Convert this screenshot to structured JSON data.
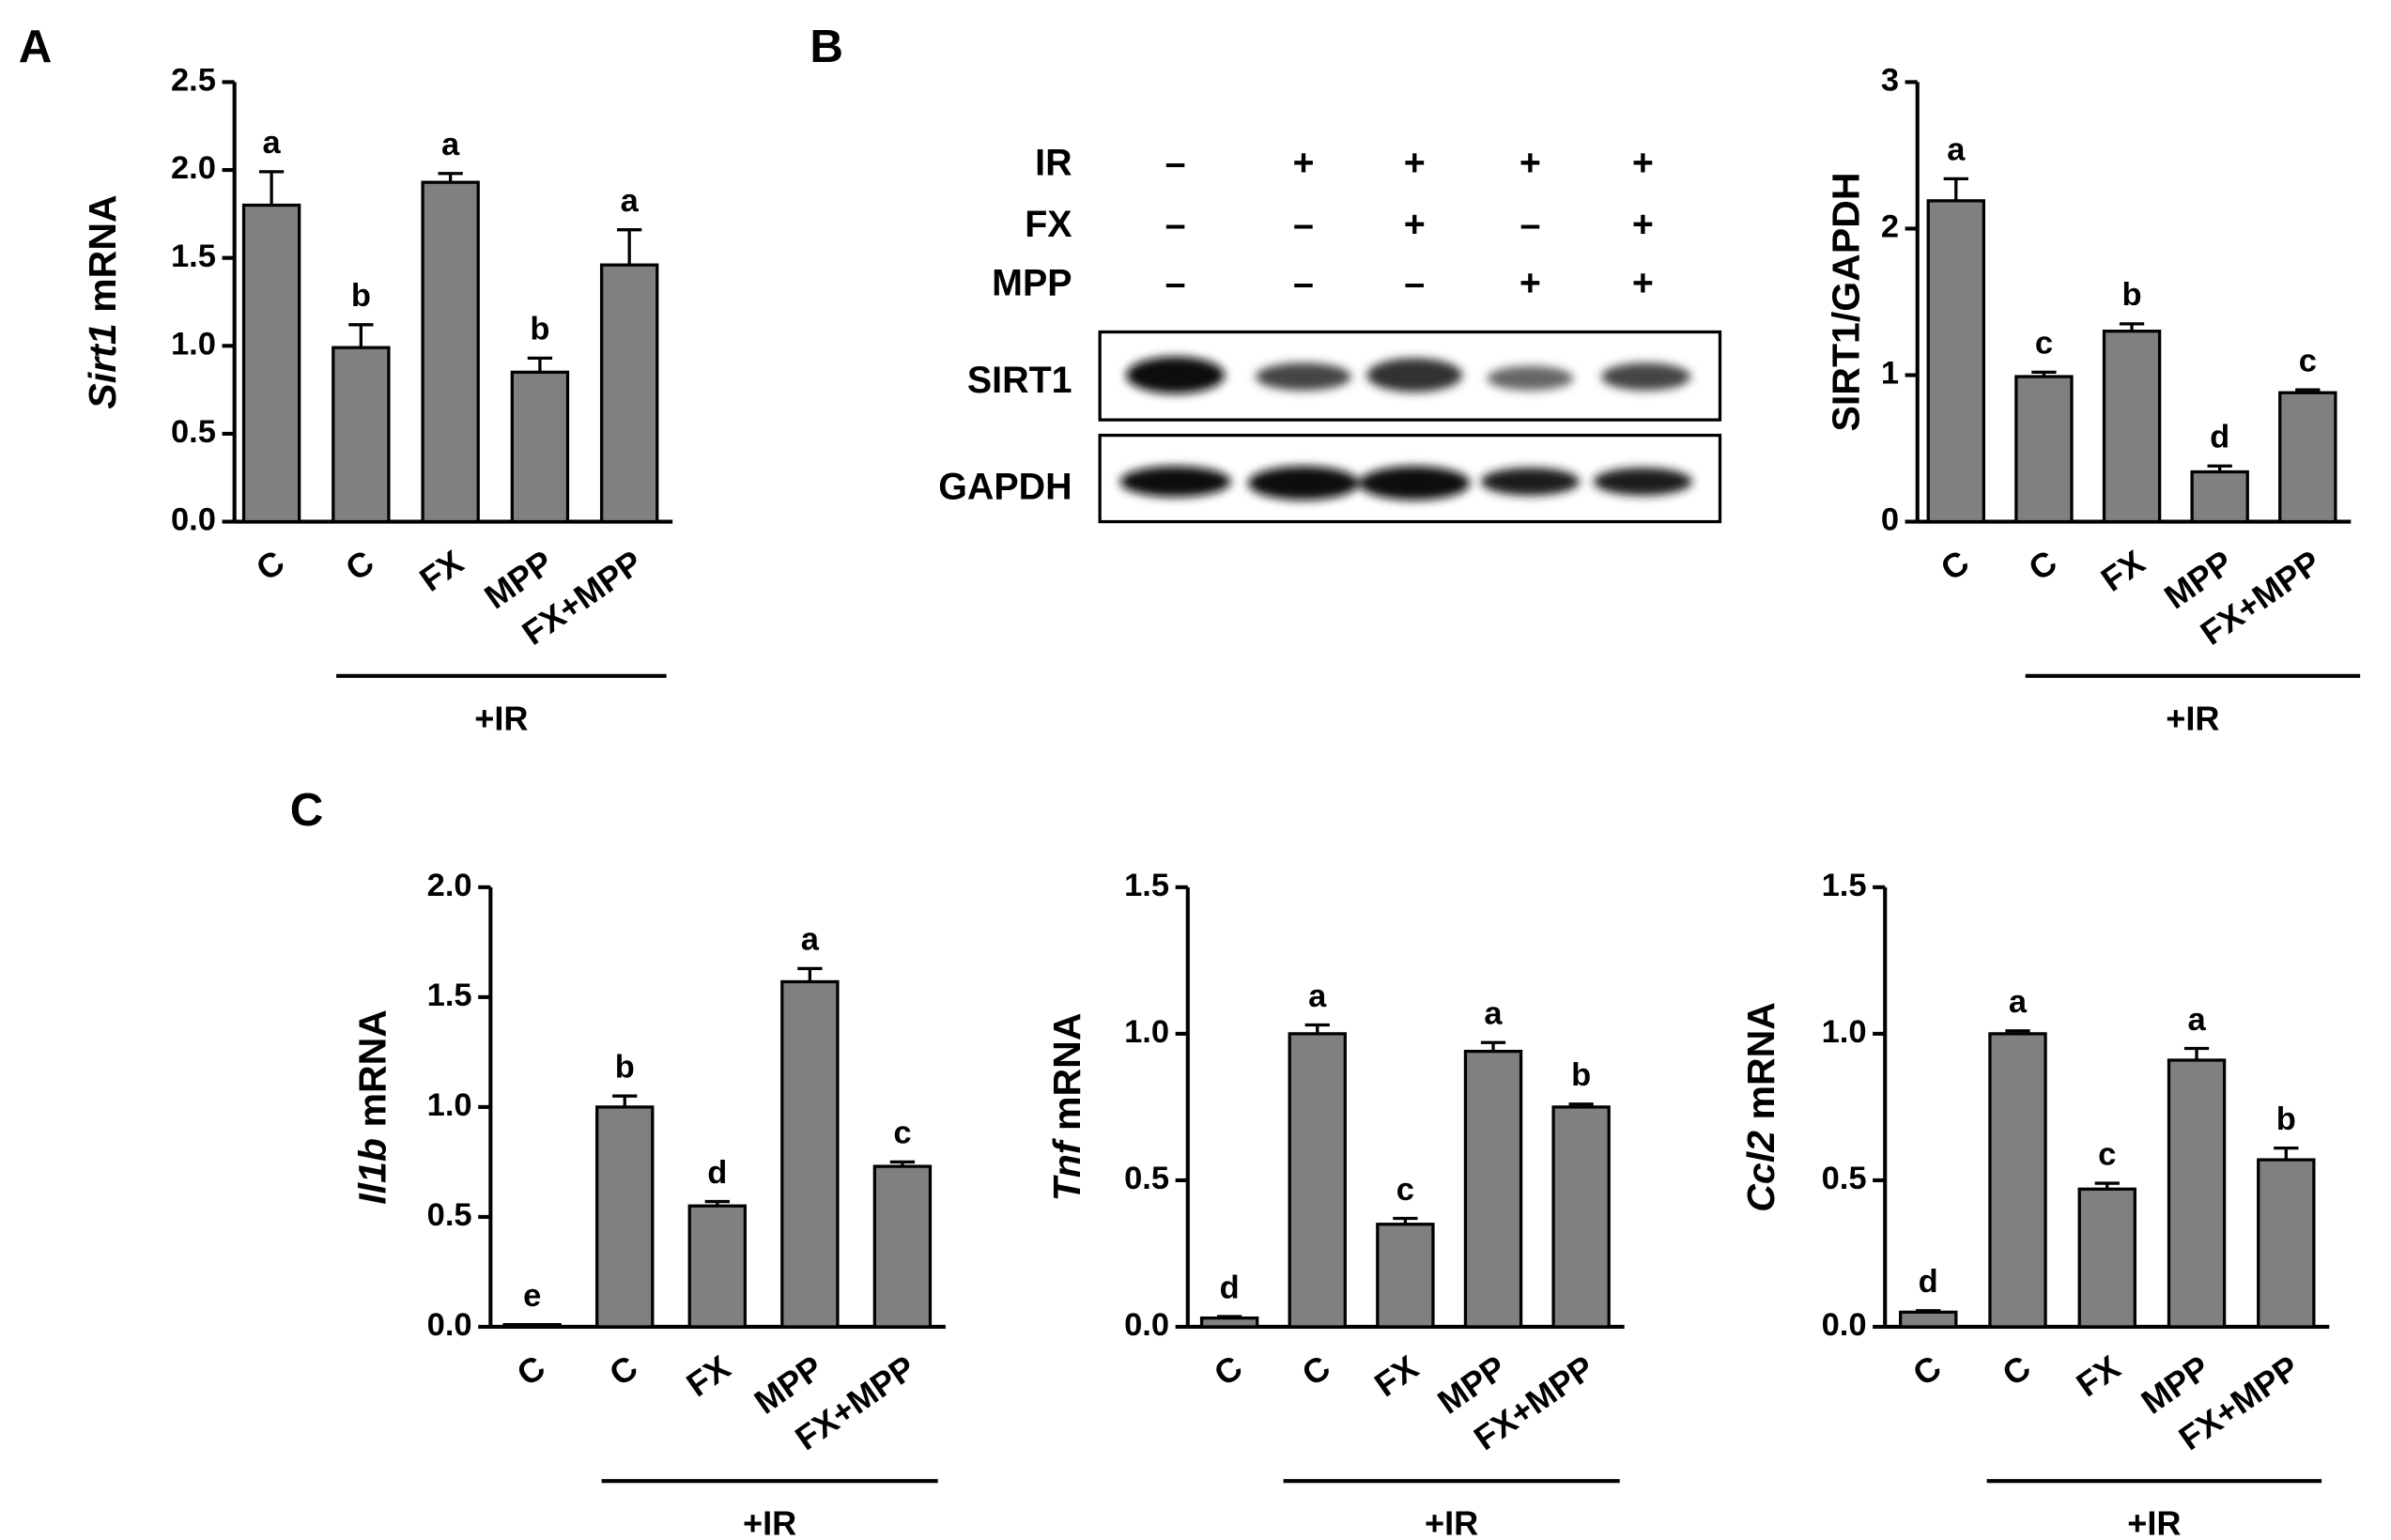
{
  "panels": [
    "A",
    "B",
    "C"
  ],
  "blot": {
    "conditions": [
      {
        "name": "IR",
        "signs": [
          "–",
          "+",
          "+",
          "+",
          "+"
        ]
      },
      {
        "name": "FX",
        "signs": [
          "–",
          "–",
          "+",
          "–",
          "+"
        ]
      },
      {
        "name": "MPP",
        "signs": [
          "–",
          "–",
          "–",
          "+",
          "+"
        ]
      }
    ],
    "proteins": [
      "SIRT1",
      "GAPDH"
    ]
  },
  "chart_data": [
    {
      "type": "bar",
      "ylabel_italic": "Sirt1",
      "ylabel": "mRNA",
      "categories": [
        "C",
        "C",
        "FX",
        "MPP",
        "FX+MPP"
      ],
      "values": [
        1.8,
        0.99,
        1.93,
        0.85,
        1.46
      ],
      "errors": [
        0.19,
        0.13,
        0.05,
        0.08,
        0.2
      ],
      "annotations": [
        "a",
        "b",
        "a",
        "b",
        "a"
      ],
      "group_label": "+IR",
      "color": "#808080",
      "ylim": [
        0,
        2.5
      ],
      "yticks": [
        {
          "value": 0,
          "label": "0.0"
        },
        0.5,
        {
          "value": 1,
          "label": "1.0"
        },
        1.5,
        {
          "value": 2,
          "label": "2.0"
        },
        2.5
      ]
    },
    {
      "type": "bar",
      "ylabel": "SIRT1/GAPDH",
      "categories": [
        "C",
        "C",
        "FX",
        "MPP",
        "FX+MPP"
      ],
      "values": [
        2.19,
        0.99,
        1.3,
        0.34,
        0.88
      ],
      "errors": [
        0.15,
        0.03,
        0.05,
        0.04,
        0.02
      ],
      "annotations": [
        "a",
        "c",
        "b",
        "d",
        "c"
      ],
      "group_label": "+IR",
      "color": "#808080",
      "ylim": [
        0,
        3
      ],
      "yticks": [
        0,
        1,
        2,
        3
      ]
    },
    {
      "type": "bar",
      "ylabel_italic": "Il1b",
      "ylabel": "mRNA",
      "categories": [
        "C",
        "C",
        "FX",
        "MPP",
        "FX+MPP"
      ],
      "values": [
        0.01,
        1.0,
        0.55,
        1.57,
        0.73
      ],
      "errors": [
        0,
        0.05,
        0.02,
        0.06,
        0.02
      ],
      "annotations": [
        "e",
        "b",
        "d",
        "a",
        "c"
      ],
      "group_label": "+IR",
      "color": "#808080",
      "ylim": [
        0,
        2
      ],
      "yticks": [
        {
          "value": 0,
          "label": "0.0"
        },
        0.5,
        {
          "value": 1,
          "label": "1.0"
        },
        1.5,
        {
          "value": 2,
          "label": "2.0"
        }
      ]
    },
    {
      "type": "bar",
      "ylabel_italic": "Tnf",
      "ylabel": "mRNA",
      "categories": [
        "C",
        "C",
        "FX",
        "MPP",
        "FX+MPP"
      ],
      "values": [
        0.03,
        1.0,
        0.35,
        0.94,
        0.75
      ],
      "errors": [
        0.005,
        0.03,
        0.02,
        0.03,
        0.01
      ],
      "annotations": [
        "d",
        "a",
        "c",
        "a",
        "b"
      ],
      "group_label": "+IR",
      "color": "#808080",
      "ylim": [
        0,
        1.5
      ],
      "yticks": [
        {
          "value": 0,
          "label": "0.0"
        },
        0.5,
        {
          "value": 1,
          "label": "1.0"
        },
        1.5
      ]
    },
    {
      "type": "bar",
      "ylabel_italic": "Ccl2",
      "ylabel": "mRNA",
      "categories": [
        "C",
        "C",
        "FX",
        "MPP",
        "FX+MPP"
      ],
      "values": [
        0.05,
        1.0,
        0.47,
        0.91,
        0.57
      ],
      "errors": [
        0.005,
        0.01,
        0.02,
        0.04,
        0.04
      ],
      "annotations": [
        "d",
        "a",
        "c",
        "a",
        "b"
      ],
      "group_label": "+IR",
      "color": "#808080",
      "ylim": [
        0,
        1.5
      ],
      "yticks": [
        {
          "value": 0,
          "label": "0.0"
        },
        0.5,
        {
          "value": 1,
          "label": "1.0"
        },
        1.5
      ]
    }
  ]
}
